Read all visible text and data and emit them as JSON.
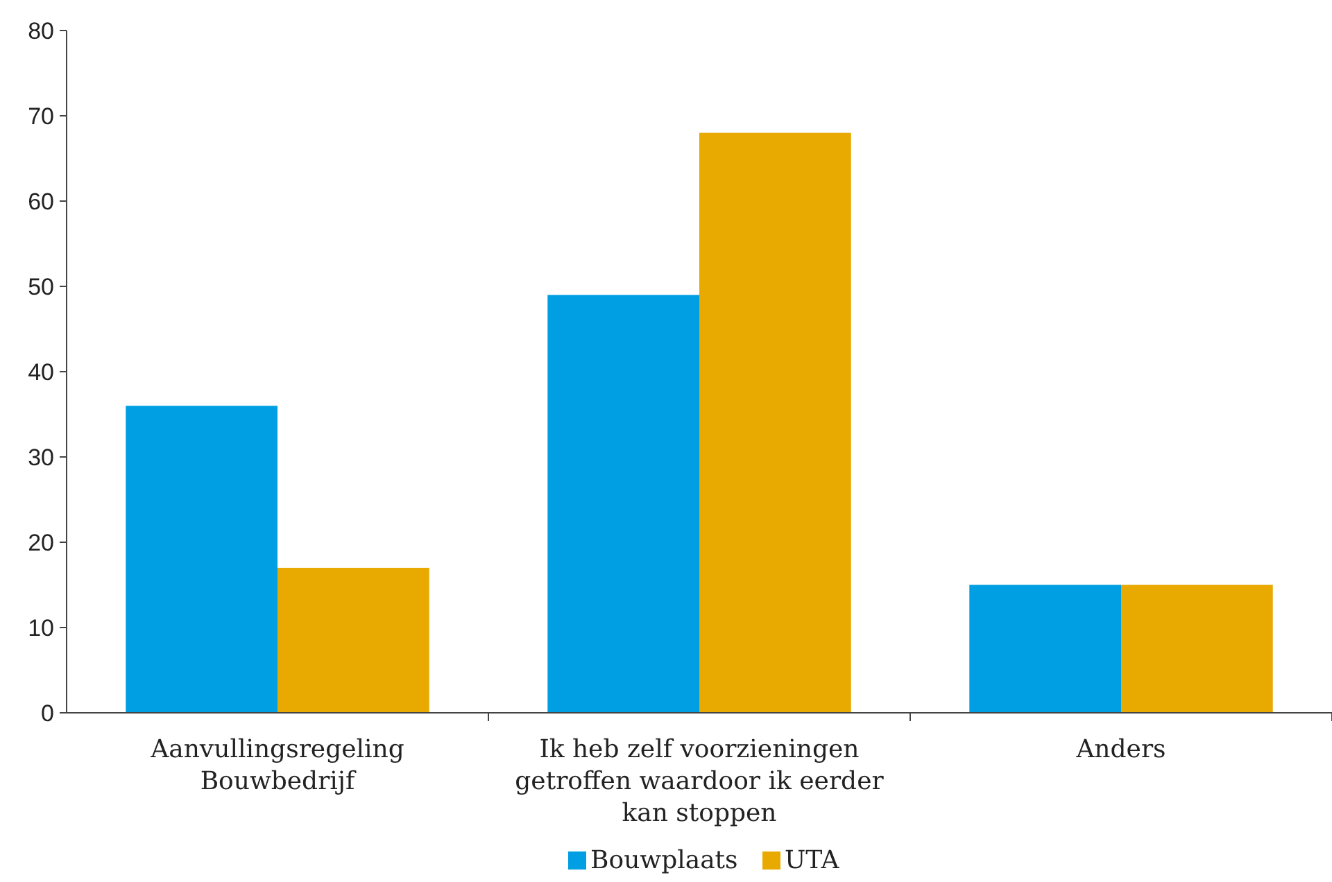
{
  "chart_data": {
    "type": "bar",
    "categories": [
      "Aanvullingsregeling Bouwbedrijf",
      "Ik heb zelf voorzieningen getroffen waardoor ik eerder kan stoppen",
      "Anders"
    ],
    "series": [
      {
        "name": "Bouwplaats",
        "color": "#009fe3",
        "values": [
          36,
          49,
          15
        ]
      },
      {
        "name": "UTA",
        "color": "#e8a900",
        "values": [
          17,
          68,
          15
        ]
      }
    ],
    "ylim": [
      0,
      80
    ],
    "yticks": [
      0,
      10,
      20,
      30,
      40,
      50,
      60,
      70,
      80
    ],
    "grid": false,
    "legend": "bottom"
  }
}
